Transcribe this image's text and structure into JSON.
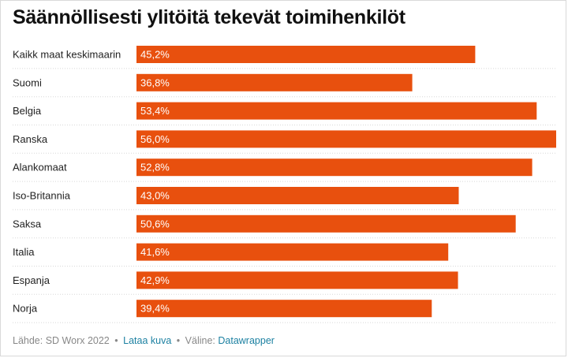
{
  "chart_data": {
    "type": "bar",
    "orientation": "horizontal",
    "title": "Säännöllisesti ylitöitä tekevät toimihenkilöt",
    "categories": [
      "Kaikk maat keskimaarin",
      "Suomi",
      "Belgia",
      "Ranska",
      "Alankomaat",
      "Iso-Britannia",
      "Saksa",
      "Italia",
      "Espanja",
      "Norja"
    ],
    "values": [
      45.2,
      36.8,
      53.4,
      56.0,
      52.8,
      43.0,
      50.6,
      41.6,
      42.9,
      39.4
    ],
    "value_labels": [
      "45,2%",
      "36,8%",
      "53,4%",
      "56,0%",
      "52,8%",
      "43,0%",
      "50,6%",
      "41,6%",
      "42,9%",
      "39,4%"
    ],
    "xlim": [
      0,
      56.0
    ],
    "bar_color": "#e8500e",
    "grid": false
  },
  "footer": {
    "source": "Lähde: SD Worx 2022",
    "separator": "•",
    "download_link": "Lataa kuva",
    "tool_prefix": "Väline:",
    "tool_link": "Datawrapper"
  },
  "colors": {
    "link": "#1d81a2",
    "muted": "#888888",
    "divider": "#d7d7d7"
  }
}
